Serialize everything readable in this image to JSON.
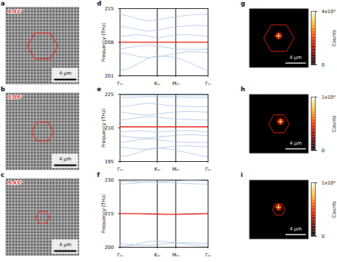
{
  "chart_data": [
    {
      "type": "image",
      "title": "a",
      "annotation": "4.41°",
      "xlim": [
        -7,
        7
      ],
      "ylim": [
        -7.5,
        7.5
      ],
      "tick_labels": false,
      "hexagon_radius": 2.9,
      "scalebar": {
        "value": 4,
        "label": "4 μm"
      }
    },
    {
      "type": "image",
      "title": "b",
      "annotation": "5.09°",
      "xlim": [
        -7,
        7
      ],
      "ylim": [
        -7.5,
        7.5
      ],
      "tick_labels": false,
      "hexagon_radius": 2.1,
      "scalebar": {
        "value": 4,
        "label": "4 μm"
      }
    },
    {
      "type": "image",
      "title": "c",
      "annotation": "9.43°",
      "xlim": [
        -7,
        7
      ],
      "ylim": [
        -7.5,
        7.5
      ],
      "tick_labels": false,
      "hexagon_radius": 1.3,
      "scalebar": {
        "value": 4,
        "label": "4 μm"
      }
    },
    {
      "type": "line",
      "title": "d",
      "ylabel": "Frequency (THz)",
      "x": [
        0,
        0.25,
        0.5,
        0.75,
        1,
        1.25,
        1.5,
        1.79,
        2.08,
        2.366
      ],
      "xlim": [
        0,
        2.366
      ],
      "xticks": [
        {
          "value": 0,
          "label": "Γₘ"
        },
        {
          "value": 1,
          "label": "Kₘ"
        },
        {
          "value": 1.5,
          "label": "Mₘ"
        },
        {
          "value": 2.366,
          "label": "Γₘ"
        }
      ],
      "ylim": [
        201,
        215
      ],
      "yticks": [
        201,
        208,
        215
      ],
      "series": [
        {
          "color": "#a9c4e4",
          "line_style": "solid",
          "values": [
            202.0,
            202.6,
            203.6,
            204.6,
            205.2,
            205.0,
            204.8,
            204.0,
            203.0,
            202.0
          ]
        },
        {
          "color": "#a9c4e4",
          "line_style": "solid",
          "values": [
            205.8,
            205.5,
            205.0,
            204.8,
            204.9,
            205.3,
            205.6,
            206.0,
            206.0,
            205.8
          ]
        },
        {
          "color": "#a9c4e4",
          "line_style": "solid",
          "values": [
            206.6,
            206.9,
            207.2,
            207.4,
            207.2,
            206.9,
            206.6,
            206.5,
            206.5,
            206.6
          ]
        },
        {
          "color": "#a9c4e4",
          "line_style": "solid",
          "values": [
            209.2,
            209.4,
            209.6,
            209.3,
            208.9,
            209.2,
            209.5,
            209.6,
            209.4,
            209.2
          ]
        },
        {
          "color": "#a9c4e4",
          "line_style": "solid",
          "values": [
            211.4,
            211.0,
            210.6,
            210.3,
            210.5,
            210.9,
            211.2,
            211.4,
            211.5,
            211.4
          ]
        },
        {
          "color": "#a9c4e4",
          "line_style": "solid",
          "values": [
            213.8,
            213.4,
            212.8,
            212.4,
            212.6,
            213.0,
            213.3,
            213.6,
            213.8,
            213.8
          ]
        },
        {
          "color": "#e8251f",
          "line_style": "thick",
          "values": [
            208.0,
            208.0,
            208.0,
            208.0,
            208.0,
            208.0,
            208.0,
            208.0,
            208.0,
            208.0
          ]
        }
      ]
    },
    {
      "type": "line",
      "title": "e",
      "ylabel": "Frequency (THz)",
      "x": [
        0,
        0.25,
        0.5,
        0.75,
        1,
        1.25,
        1.5,
        1.79,
        2.08,
        2.366
      ],
      "xlim": [
        0,
        2.366
      ],
      "xticks": [
        {
          "value": 0,
          "label": "Γₘ"
        },
        {
          "value": 1,
          "label": "Kₘ"
        },
        {
          "value": 1.5,
          "label": "Mₘ"
        },
        {
          "value": 2.366,
          "label": "Γₘ"
        }
      ],
      "ylim": [
        195,
        225
      ],
      "yticks": [
        195,
        210,
        225
      ],
      "series": [
        {
          "color": "#a9c4e4",
          "line_style": "solid",
          "values": [
            197.0,
            197.8,
            199.0,
            200.5,
            201.2,
            200.6,
            200.0,
            199.0,
            198.0,
            197.0
          ]
        },
        {
          "color": "#a9c4e4",
          "line_style": "solid",
          "values": [
            201.5,
            201.0,
            200.6,
            200.4,
            200.8,
            201.4,
            201.8,
            202.0,
            201.8,
            201.5
          ]
        },
        {
          "color": "#a9c4e4",
          "line_style": "solid",
          "values": [
            203.5,
            204.0,
            204.8,
            205.2,
            204.8,
            204.2,
            203.8,
            203.6,
            203.5,
            203.5
          ]
        },
        {
          "color": "#a9c4e4",
          "line_style": "solid",
          "values": [
            206.5,
            206.0,
            205.6,
            205.5,
            205.9,
            206.3,
            206.7,
            207.0,
            206.9,
            206.5
          ]
        },
        {
          "color": "#a9c4e4",
          "line_style": "solid",
          "values": [
            208.2,
            208.5,
            208.8,
            208.5,
            208.2,
            208.4,
            208.7,
            208.8,
            208.6,
            208.2
          ]
        },
        {
          "color": "#a9c4e4",
          "line_style": "solid",
          "values": [
            213.5,
            214.0,
            214.6,
            215.0,
            214.7,
            214.3,
            214.0,
            213.8,
            213.6,
            213.5
          ]
        },
        {
          "color": "#a9c4e4",
          "line_style": "solid",
          "values": [
            217.0,
            216.5,
            216.0,
            215.8,
            216.2,
            216.7,
            217.1,
            217.4,
            217.3,
            217.0
          ]
        },
        {
          "color": "#a9c4e4",
          "line_style": "solid",
          "values": [
            219.5,
            219.8,
            220.5,
            221.0,
            220.6,
            220.1,
            219.8,
            219.6,
            219.5,
            219.5
          ]
        },
        {
          "color": "#a9c4e4",
          "line_style": "solid",
          "values": [
            223.5,
            223.6,
            223.8,
            224.0,
            223.9,
            223.8,
            223.8,
            223.7,
            223.6,
            223.5
          ]
        },
        {
          "color": "#a9c4e4",
          "line_style": "solid",
          "values": [
            224.5,
            224.5,
            224.6,
            224.7,
            224.6,
            224.6,
            224.6,
            224.5,
            224.5,
            224.5
          ]
        },
        {
          "color": "#e8251f",
          "line_style": "thick",
          "values": [
            210.5,
            210.5,
            210.5,
            210.5,
            210.5,
            210.5,
            210.5,
            210.5,
            210.5,
            210.5
          ]
        }
      ]
    },
    {
      "type": "line",
      "title": "f",
      "ylabel": "Frequency (THz)",
      "x": [
        0,
        0.25,
        0.5,
        0.75,
        1,
        1.25,
        1.5,
        1.79,
        2.08,
        2.366
      ],
      "xlim": [
        0,
        2.366
      ],
      "xticks": [
        {
          "value": 0,
          "label": "Γₘ"
        },
        {
          "value": 1,
          "label": "Kₘ"
        },
        {
          "value": 1.5,
          "label": "Mₘ"
        },
        {
          "value": 2.366,
          "label": "Γₘ"
        }
      ],
      "ylim": [
        200,
        230
      ],
      "yticks": [
        200,
        215,
        230
      ],
      "series": [
        {
          "color": "#a9c4e4",
          "line_style": "solid",
          "values": [
            200.3,
            200.6,
            201.5,
            202.5,
            202.8,
            202.4,
            202.0,
            201.4,
            200.8,
            200.3
          ]
        },
        {
          "color": "#a9c4e4",
          "line_style": "solid",
          "values": [
            201.6,
            201.3,
            201.0,
            200.9,
            201.2,
            201.6,
            201.9,
            202.0,
            201.9,
            201.6
          ]
        },
        {
          "color": "#a9c4e4",
          "line_style": "solid",
          "values": [
            228.2,
            228.4,
            228.8,
            229.2,
            229.0,
            228.8,
            228.6,
            228.4,
            228.3,
            228.2
          ]
        },
        {
          "color": "#a9c4e4",
          "line_style": "solid",
          "values": [
            229.6,
            229.4,
            229.2,
            229.0,
            229.2,
            229.4,
            229.6,
            229.8,
            229.8,
            229.6
          ]
        },
        {
          "color": "#e8251f",
          "line_style": "thick",
          "values": [
            215.0,
            215.0,
            215.0,
            214.9,
            214.8,
            214.7,
            214.7,
            214.8,
            214.9,
            215.0
          ]
        }
      ]
    },
    {
      "type": "heatmap",
      "title": "g",
      "xlim": [
        -6,
        6
      ],
      "ylim": [
        -6,
        6
      ],
      "tick_labels": false,
      "hexagon_radius": 3.1,
      "scalebar": {
        "value": 4,
        "label": "4 μm"
      },
      "cell_size": 0.4,
      "cells": [
        [
          0,
          0.4,
          4000
        ],
        [
          0.4,
          0.4,
          2600
        ],
        [
          -0.4,
          0.4,
          2600
        ],
        [
          0,
          0.8,
          2600
        ],
        [
          0,
          0,
          2600
        ],
        [
          0.4,
          0.8,
          1400
        ],
        [
          -0.4,
          0.8,
          1400
        ],
        [
          0.4,
          0,
          1400
        ],
        [
          -0.4,
          0,
          1400
        ],
        [
          0.8,
          0.4,
          600
        ],
        [
          -0.8,
          0.4,
          600
        ],
        [
          0,
          1.2,
          600
        ],
        [
          0,
          -0.4,
          600
        ]
      ],
      "colorbar": {
        "label": "Counts",
        "range": [
          0,
          4000
        ],
        "ticks": [
          0,
          {
            "value": 4000,
            "label": "4x10³"
          }
        ]
      }
    },
    {
      "type": "heatmap",
      "title": "h",
      "xlim": [
        -6,
        6
      ],
      "ylim": [
        -6,
        6
      ],
      "tick_labels": false,
      "hexagon_radius": 2.1,
      "scalebar": {
        "value": 4,
        "label": "4 μm"
      },
      "cell_size": 0.4,
      "cells": [
        [
          0.4,
          0.4,
          10000
        ],
        [
          0.8,
          0.4,
          6500
        ],
        [
          0,
          0.4,
          6500
        ],
        [
          0.4,
          0.8,
          6500
        ],
        [
          0.4,
          0,
          6500
        ],
        [
          0.8,
          0.8,
          3500
        ],
        [
          0,
          0.8,
          3500
        ],
        [
          0.8,
          0,
          3500
        ],
        [
          0,
          0,
          3500
        ],
        [
          1.2,
          0.4,
          1500
        ],
        [
          -0.4,
          0.4,
          1500
        ],
        [
          0.4,
          1.2,
          1500
        ],
        [
          0.4,
          -0.4,
          1500
        ]
      ],
      "colorbar": {
        "label": "Counts",
        "range": [
          0,
          10000
        ],
        "ticks": [
          0,
          {
            "value": 10000,
            "label": "1x10⁴"
          }
        ]
      }
    },
    {
      "type": "heatmap",
      "title": "i",
      "xlim": [
        -6,
        6
      ],
      "ylim": [
        -6,
        6
      ],
      "tick_labels": false,
      "hexagon_radius": 1.3,
      "scalebar": {
        "value": 4,
        "label": "4 μm"
      },
      "cell_size": 0.4,
      "cells": [
        [
          0,
          0.4,
          10000
        ],
        [
          0.4,
          0.4,
          6500
        ],
        [
          -0.4,
          0.4,
          6500
        ],
        [
          0,
          0.8,
          6500
        ],
        [
          0,
          0,
          6500
        ],
        [
          0.4,
          0.8,
          3500
        ],
        [
          -0.4,
          0.8,
          3500
        ],
        [
          0.4,
          0,
          3500
        ],
        [
          -0.4,
          0,
          3500
        ],
        [
          0.8,
          0.4,
          1500
        ],
        [
          -0.8,
          0.4,
          1500
        ],
        [
          0,
          1.2,
          1500
        ],
        [
          0,
          -0.4,
          1500
        ]
      ],
      "colorbar": {
        "label": "Counts",
        "range": [
          0,
          10000
        ],
        "ticks": [
          0,
          {
            "value": 10000,
            "label": "1x10⁴"
          }
        ]
      }
    }
  ]
}
